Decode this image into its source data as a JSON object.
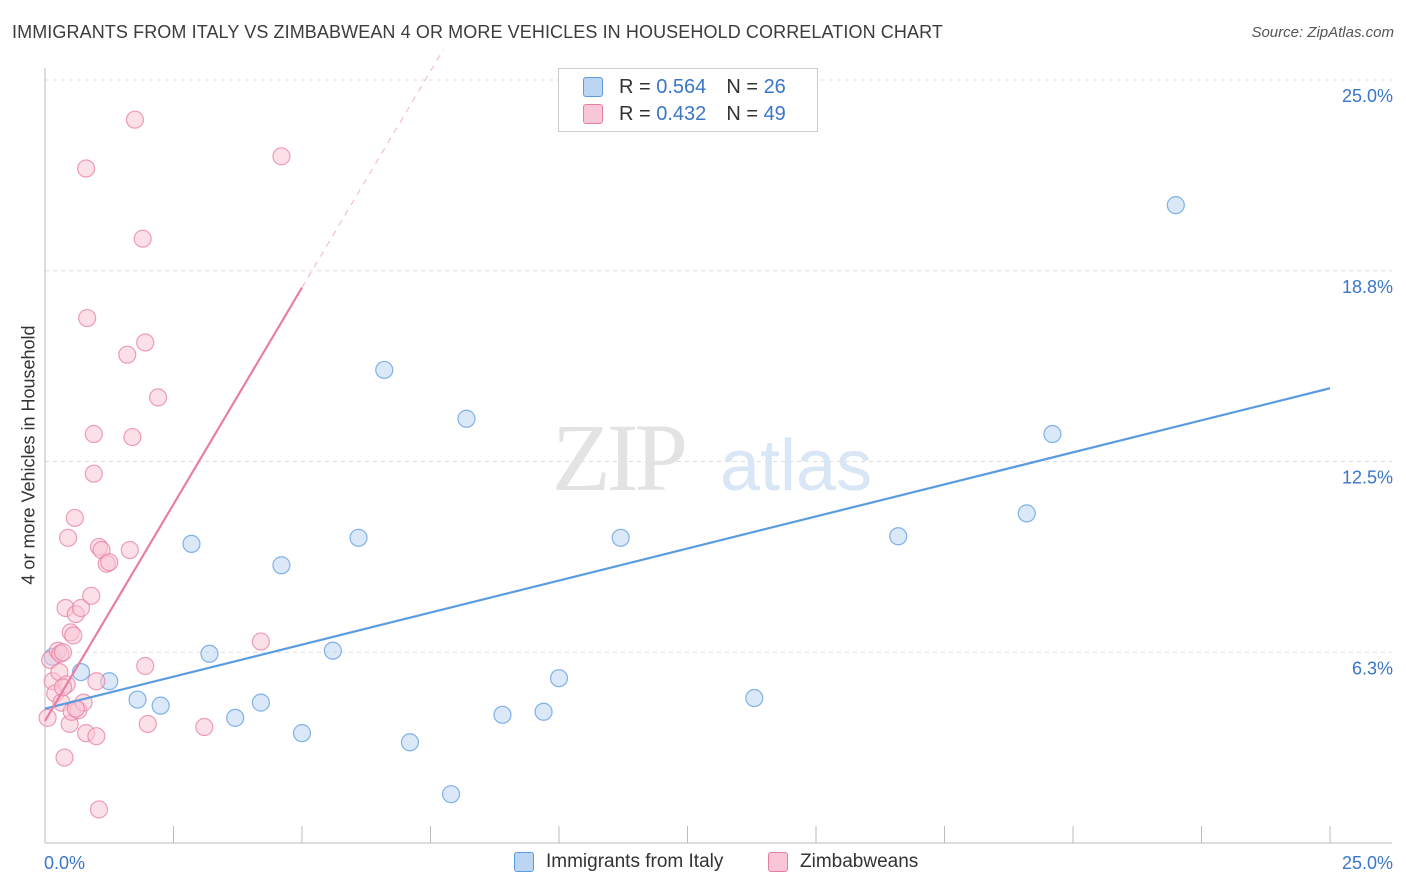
{
  "chart_data": {
    "type": "scatter",
    "title": "IMMIGRANTS FROM ITALY VS ZIMBABWEAN 4 OR MORE VEHICLES IN HOUSEHOLD CORRELATION CHART",
    "source": "Source: ZipAtlas.com",
    "xlabel": "",
    "ylabel": "4 or more Vehicles in Household",
    "xlim": [
      0,
      25
    ],
    "ylim": [
      0,
      25
    ],
    "x_tick_labels": [
      "0.0%",
      "25.0%"
    ],
    "y_tick_values": [
      6.25,
      12.5,
      18.75,
      25.0
    ],
    "y_tick_labels": [
      "6.3%",
      "12.5%",
      "18.8%",
      "25.0%"
    ],
    "grid": true,
    "watermark": "ZIPatlas",
    "legend_position": "top-center",
    "legend": [
      {
        "label": "R =",
        "r": "0.564",
        "n_label": "N =",
        "n": "26",
        "color": "#5b9be0"
      },
      {
        "label": "R =",
        "r": "0.432",
        "n_label": "N =",
        "n": "49",
        "color": "#e87fa3"
      }
    ],
    "series": [
      {
        "name": "Immigrants from Italy",
        "color": "#5b9be0",
        "fill": "#bcd5f3",
        "trend": {
          "x": [
            0,
            25
          ],
          "y": [
            4.4,
            14.9
          ],
          "style": "solid"
        },
        "points": [
          [
            0.15,
            6.1
          ],
          [
            0.7,
            5.6
          ],
          [
            1.25,
            5.3
          ],
          [
            1.8,
            4.7
          ],
          [
            2.25,
            4.5
          ],
          [
            2.85,
            9.8
          ],
          [
            3.2,
            6.2
          ],
          [
            3.7,
            4.1
          ],
          [
            4.2,
            4.6
          ],
          [
            4.6,
            9.1
          ],
          [
            5.0,
            3.6
          ],
          [
            5.6,
            6.3
          ],
          [
            6.1,
            10.0
          ],
          [
            6.6,
            15.5
          ],
          [
            7.1,
            3.3
          ],
          [
            7.9,
            1.6
          ],
          [
            8.2,
            13.9
          ],
          [
            8.9,
            4.2
          ],
          [
            9.7,
            4.3
          ],
          [
            10.0,
            5.4
          ],
          [
            11.2,
            10.0
          ],
          [
            13.8,
            4.75
          ],
          [
            16.6,
            10.05
          ],
          [
            19.1,
            10.8
          ],
          [
            19.6,
            13.4
          ],
          [
            22.0,
            20.9
          ]
        ]
      },
      {
        "name": "Zimbabweans",
        "color": "#e87fa3",
        "fill": "#f8c6d6",
        "trend": {
          "x": [
            0,
            5.0
          ],
          "y": [
            4.0,
            18.2
          ],
          "style": "solid",
          "extension": {
            "x": [
              5.0,
              7.75
            ],
            "y": [
              18.2,
              26.0
            ],
            "style": "dashed"
          }
        },
        "points": [
          [
            0.05,
            4.1
          ],
          [
            0.1,
            6.0
          ],
          [
            0.15,
            5.3
          ],
          [
            0.2,
            4.9
          ],
          [
            0.25,
            6.3
          ],
          [
            0.28,
            5.6
          ],
          [
            0.3,
            6.2
          ],
          [
            0.32,
            4.6
          ],
          [
            0.35,
            6.25
          ],
          [
            0.38,
            2.8
          ],
          [
            0.4,
            7.7
          ],
          [
            0.42,
            5.2
          ],
          [
            0.45,
            10.0
          ],
          [
            0.48,
            3.9
          ],
          [
            0.5,
            6.9
          ],
          [
            0.52,
            4.3
          ],
          [
            0.55,
            6.8
          ],
          [
            0.58,
            10.65
          ],
          [
            0.6,
            7.5
          ],
          [
            0.65,
            4.35
          ],
          [
            0.7,
            7.7
          ],
          [
            0.75,
            4.6
          ],
          [
            0.8,
            3.6
          ],
          [
            0.8,
            22.1
          ],
          [
            0.82,
            17.2
          ],
          [
            0.9,
            8.1
          ],
          [
            0.95,
            12.1
          ],
          [
            0.95,
            13.4
          ],
          [
            1.0,
            5.3
          ],
          [
            1.0,
            3.5
          ],
          [
            1.05,
            9.7
          ],
          [
            1.05,
            1.1
          ],
          [
            1.1,
            9.6
          ],
          [
            1.2,
            9.15
          ],
          [
            1.25,
            9.2
          ],
          [
            1.6,
            16.0
          ],
          [
            1.65,
            9.6
          ],
          [
            1.7,
            13.3
          ],
          [
            1.75,
            23.7
          ],
          [
            1.9,
            19.8
          ],
          [
            1.95,
            16.4
          ],
          [
            1.95,
            5.8
          ],
          [
            2.0,
            3.9
          ],
          [
            2.2,
            14.6
          ],
          [
            3.1,
            3.8
          ],
          [
            4.2,
            6.6
          ],
          [
            4.6,
            22.5
          ],
          [
            0.6,
            4.4
          ],
          [
            0.35,
            5.1
          ]
        ]
      }
    ]
  },
  "legend_text": {
    "r_label": "R =",
    "n_label": "N =",
    "s1_r": "0.564",
    "s1_n": "26",
    "s2_r": "0.432",
    "s2_n": "49"
  },
  "bottom_legend": {
    "s1": "Immigrants from Italy",
    "s2": "Zimbabweans"
  }
}
